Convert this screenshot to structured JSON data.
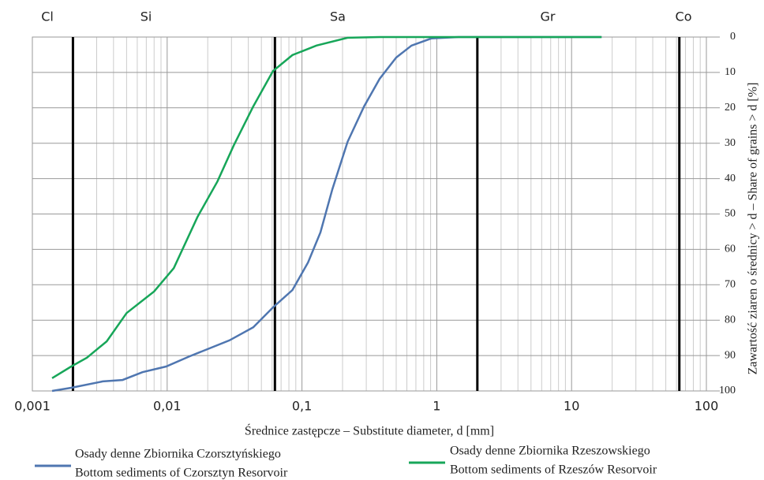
{
  "chart_data": {
    "type": "line",
    "x_label": "Średnice zastępcze – Substitute diameter, d [mm]",
    "y_label": "Zawartość ziaren o średnicy > d – Share of grains > d [%]",
    "zones": [
      "Cl",
      "Si",
      "Sa",
      "Gr",
      "Co"
    ],
    "boundaries": [
      0.002,
      0.063,
      2,
      63
    ],
    "xscale": "log",
    "xlim": [
      0.001,
      100
    ],
    "xticks": [
      {
        "value": 0.001,
        "label": "0,001"
      },
      {
        "value": 0.01,
        "label": "0,01"
      },
      {
        "value": 0.1,
        "label": "0,1"
      },
      1,
      10,
      100
    ],
    "ylim": [
      0,
      100
    ],
    "yinverted": true,
    "yticks": [
      0,
      10,
      20,
      30,
      40,
      50,
      60,
      70,
      80,
      90,
      100
    ],
    "grid": true,
    "series": [
      {
        "name": [
          "Osady denne Zbiornika Czorsztyńskiego",
          "Bottom sediments of Czorsztyn Resorvoir"
        ],
        "color": "#4f76b0",
        "x": [
          0.0014,
          0.00194,
          0.00333,
          0.00467,
          0.00656,
          0.00983,
          0.0147,
          0.029,
          0.0435,
          0.061,
          0.085,
          0.111,
          0.137,
          0.168,
          0.218,
          0.289,
          0.377,
          0.5,
          0.65,
          0.91,
          1.45,
          16.7
        ],
        "values": [
          100,
          99.1,
          97.3,
          96.9,
          94.7,
          93.1,
          90.2,
          85.7,
          82,
          76.4,
          71.5,
          63.7,
          55.2,
          43,
          29.6,
          19.6,
          11.8,
          5.8,
          2.4,
          0.4,
          0,
          0
        ]
      },
      {
        "name": [
          "Osady denne Zbiornika Rzeszowskiego",
          "Bottom sediments of Rzeszów Resorvoir"
        ],
        "color": "#17a659",
        "x": [
          0.0014,
          0.00194,
          0.00254,
          0.00356,
          0.005,
          0.008,
          0.0112,
          0.0168,
          0.0236,
          0.0311,
          0.0435,
          0.061,
          0.085,
          0.128,
          0.218,
          0.377,
          16.7
        ],
        "values": [
          96.4,
          93.1,
          90.6,
          86,
          78,
          71.9,
          65.3,
          50.8,
          40.8,
          30.7,
          19.6,
          9.6,
          5.1,
          2.4,
          0.2,
          0,
          0
        ]
      }
    ]
  }
}
